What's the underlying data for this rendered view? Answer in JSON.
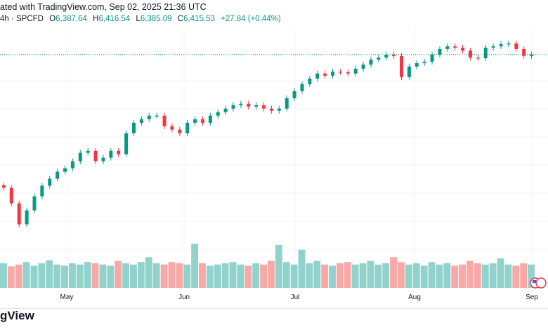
{
  "header": {
    "credit": "ated with TradingView.com, Sep 02, 2025 21:36 UTC"
  },
  "legend": {
    "symbol": "4h · SPCFD",
    "open_label": "O",
    "open": "6,387.64",
    "high_label": "H",
    "high": "6,416.54",
    "low_label": "L",
    "low": "6,385.09",
    "close_label": "C",
    "close": "6,415.53",
    "change": "+27.84 (+0.44%)"
  },
  "time_axis": [
    "May",
    "Jun",
    "Jul",
    "Aug",
    "Sep"
  ],
  "logo": "gView",
  "colors": {
    "up": "#089981",
    "down": "#f23645",
    "vol_up": "#92d2cc",
    "vol_down": "#f7a9a7",
    "grid": "#f0f3fa"
  },
  "chart_data": {
    "type": "candlestick",
    "last_price": 6415.53,
    "ylim": [
      4997,
      6828
    ],
    "closes": [
      5408,
      5291,
      5132,
      5238,
      5344,
      5424,
      5477,
      5530,
      5556,
      5609,
      5673,
      5688,
      5609,
      5636,
      5688,
      5662,
      5821,
      5900,
      5927,
      5954,
      5954,
      5874,
      5848,
      5821,
      5900,
      5927,
      5900,
      5954,
      5980,
      6007,
      6033,
      6044,
      6022,
      6033,
      6007,
      5991,
      6007,
      6086,
      6139,
      6192,
      6234,
      6272,
      6256,
      6287,
      6282,
      6272,
      6309,
      6340,
      6378,
      6393,
      6415,
      6404,
      6245,
      6325,
      6351,
      6362,
      6415,
      6457,
      6478,
      6468,
      6446,
      6393,
      6388,
      6468,
      6478,
      6494,
      6500,
      6457,
      6404,
      6416
    ],
    "volumes": [
      40,
      35,
      38,
      42,
      36,
      40,
      45,
      38,
      36,
      40,
      38,
      42,
      40,
      38,
      36,
      44,
      40,
      38,
      42,
      50,
      40,
      38,
      42,
      40,
      38,
      72,
      40,
      36,
      38,
      40,
      42,
      38,
      36,
      40,
      38,
      44,
      70,
      42,
      38,
      62,
      40,
      44,
      38,
      36,
      40,
      42,
      38,
      40,
      44,
      38,
      40,
      50,
      42,
      38,
      40,
      36,
      42,
      38,
      40,
      36,
      38,
      44,
      40,
      38,
      40,
      48,
      38,
      36,
      40,
      38
    ]
  }
}
